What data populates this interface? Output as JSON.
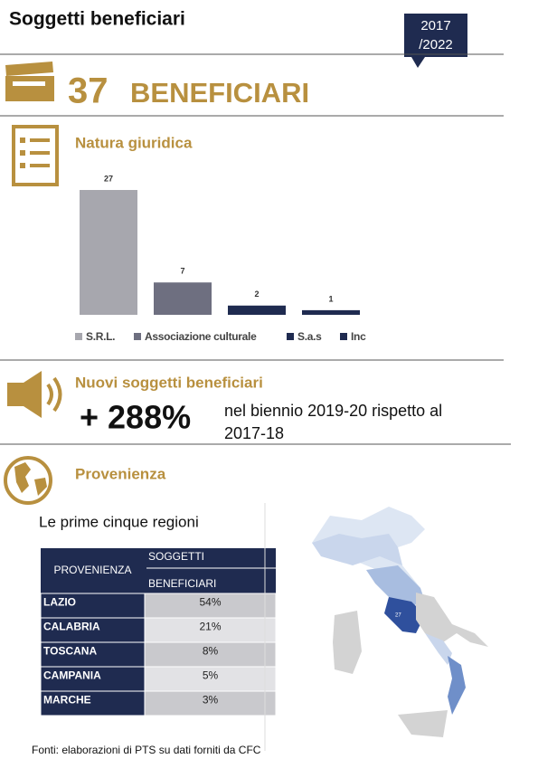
{
  "header": {
    "title": "Soggetti beneficiari",
    "period": [
      "2017",
      "/2022"
    ]
  },
  "headline": {
    "count": 37,
    "label": "BENEFICIARI"
  },
  "natura": {
    "title": "Natura giuridica",
    "chart_data": {
      "type": "bar",
      "categories": [
        "S.R.L.",
        "Associazione culturale",
        "S.a.s",
        "Inc"
      ],
      "values": [
        27,
        7,
        2,
        1
      ],
      "colors": [
        "#a7a7ae",
        "#6e6f80",
        "#1f2b50",
        "#1f2b50"
      ]
    }
  },
  "nuovi": {
    "title": "Nuovi soggetti beneficiari",
    "value": "+ 288%",
    "text": [
      "nel biennio 2019-20 rispetto al",
      "2017-18"
    ]
  },
  "provenienza": {
    "title": "Provenienza",
    "subtitle": "Le prime cinque regioni",
    "table": {
      "header": [
        "PROVENIENZA",
        [
          "SOGGETTI",
          "BENEFICIARI"
        ]
      ],
      "rows": [
        [
          "LAZIO",
          "54%"
        ],
        [
          "CALABRIA",
          "21%"
        ],
        [
          "TOSCANA",
          "8%"
        ],
        [
          "CAMPANIA",
          "5%"
        ],
        [
          "MARCHE",
          "3%"
        ]
      ]
    },
    "map_label": "27"
  },
  "footer": "Fonti: elaborazioni di PTS su dati forniti da CFC"
}
